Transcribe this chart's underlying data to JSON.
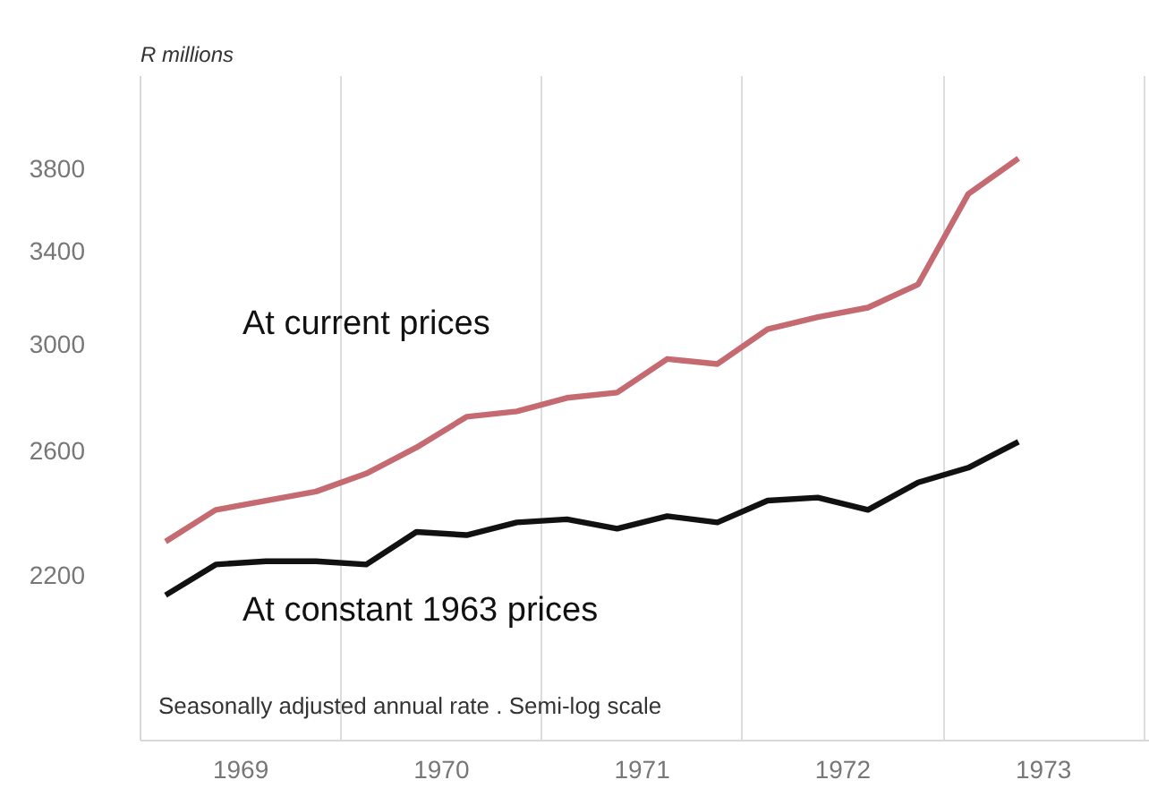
{
  "chart_data": {
    "type": "line",
    "ylabel": "R millions",
    "x": [
      1969.125,
      1969.375,
      1969.625,
      1969.875,
      1970.125,
      1970.375,
      1970.625,
      1970.875,
      1971.125,
      1971.375,
      1971.625,
      1971.875,
      1972.125,
      1972.375,
      1972.625,
      1972.875,
      1973.125,
      1973.375
    ],
    "series": [
      {
        "name": "At current prices",
        "color": "#c46a70",
        "values": [
          2300,
          2400,
          2430,
          2460,
          2520,
          2610,
          2720,
          2740,
          2790,
          2810,
          2940,
          2920,
          3060,
          3110,
          3150,
          3250,
          3670,
          3850
        ]
      },
      {
        "name": "At constant 1963 prices",
        "color": "#111111",
        "values": [
          2140,
          2230,
          2240,
          2240,
          2230,
          2330,
          2320,
          2360,
          2370,
          2340,
          2380,
          2360,
          2430,
          2440,
          2400,
          2490,
          2540,
          2630
        ]
      }
    ],
    "log": "y",
    "ylim": [
      1760,
      4300
    ],
    "yticks": [
      2200,
      2600,
      3000,
      3400,
      3800
    ],
    "xlim": [
      1969,
      1974.03
    ],
    "xticks": [
      {
        "value": 1969,
        "label": null
      },
      {
        "value": 1969.5,
        "label": "1969"
      },
      {
        "value": 1970,
        "label": null
      },
      {
        "value": 1970.5,
        "label": "1970"
      },
      {
        "value": 1971,
        "label": null
      },
      {
        "value": 1971.5,
        "label": "1971"
      },
      {
        "value": 1972,
        "label": null
      },
      {
        "value": 1972.5,
        "label": "1972"
      },
      {
        "value": 1973,
        "label": null
      },
      {
        "value": 1973.5,
        "label": "1973"
      },
      {
        "value": 1974,
        "label": null
      }
    ],
    "grid": "x",
    "legend": false,
    "marker": "none",
    "line_style": "solid",
    "annotations": [
      "Seasonally adjusted annual rate . Semi-log scale"
    ]
  }
}
